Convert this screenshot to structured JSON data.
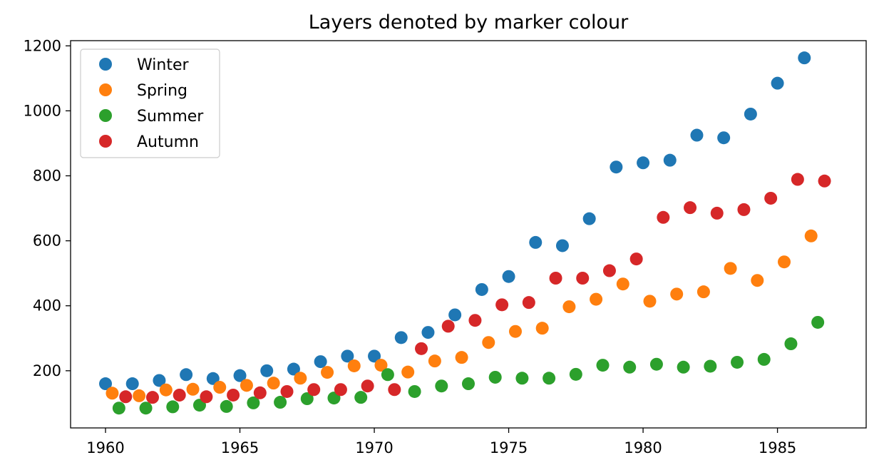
{
  "chart_data": {
    "type": "scatter",
    "title": "Layers denoted by marker colour",
    "xlabel": "",
    "ylabel": "",
    "xlim": [
      1958.7,
      1988.3
    ],
    "ylim": [
      24,
      1216
    ],
    "xticks": [
      1960,
      1965,
      1970,
      1975,
      1980,
      1985
    ],
    "yticks": [
      200,
      400,
      600,
      800,
      1000,
      1200
    ],
    "grid": false,
    "legend": "top-left",
    "series": [
      {
        "name": "Winter",
        "color": "#1f77b4",
        "x": [
          1960,
          1961,
          1962,
          1963,
          1964,
          1965,
          1966,
          1967,
          1968,
          1969,
          1970,
          1971,
          1972,
          1973,
          1974,
          1975,
          1976,
          1977,
          1978,
          1979,
          1980,
          1981,
          1982,
          1983,
          1984,
          1985,
          1986
        ],
        "y": [
          160,
          160,
          170,
          188,
          176,
          185,
          200,
          205,
          228,
          245,
          245,
          302,
          318,
          372,
          450,
          490,
          595,
          585,
          668,
          827,
          840,
          848,
          925,
          917,
          990,
          1085,
          1163
        ]
      },
      {
        "name": "Spring",
        "color": "#ff7f0e",
        "x": [
          1960.25,
          1961.25,
          1962.25,
          1963.25,
          1964.25,
          1965.25,
          1966.25,
          1967.25,
          1968.25,
          1969.25,
          1970.25,
          1971.25,
          1972.25,
          1973.25,
          1974.25,
          1975.25,
          1976.25,
          1977.25,
          1978.25,
          1979.25,
          1980.25,
          1981.25,
          1982.25,
          1983.25,
          1984.25,
          1985.25,
          1986.25
        ],
        "y": [
          131,
          123,
          141,
          143,
          149,
          155,
          162,
          177,
          195,
          215,
          217,
          196,
          230,
          241,
          287,
          321,
          331,
          397,
          420,
          467,
          414,
          436,
          443,
          515,
          478,
          535,
          615
        ]
      },
      {
        "name": "Summer",
        "color": "#2ca02c",
        "x": [
          1960.5,
          1961.5,
          1962.5,
          1963.5,
          1964.5,
          1965.5,
          1966.5,
          1967.5,
          1968.5,
          1969.5,
          1970.5,
          1971.5,
          1972.5,
          1973.5,
          1974.5,
          1975.5,
          1976.5,
          1977.5,
          1978.5,
          1979.5,
          1980.5,
          1981.5,
          1982.5,
          1983.5,
          1984.5,
          1985.5,
          1986.5
        ],
        "y": [
          85,
          85,
          89,
          94,
          90,
          101,
          103,
          114,
          116,
          118,
          188,
          136,
          153,
          160,
          180,
          177,
          177,
          189,
          217,
          211,
          220,
          211,
          214,
          226,
          235,
          283,
          349
        ]
      },
      {
        "name": "Autumn",
        "color": "#d62728",
        "x": [
          1960.75,
          1961.75,
          1962.75,
          1963.75,
          1964.75,
          1965.75,
          1966.75,
          1967.75,
          1968.75,
          1969.75,
          1970.75,
          1971.75,
          1972.75,
          1973.75,
          1974.75,
          1975.75,
          1976.75,
          1977.75,
          1978.75,
          1979.75,
          1980.75,
          1981.75,
          1982.75,
          1983.75,
          1984.75,
          1985.75,
          1986.75
        ],
        "y": [
          120,
          118,
          125,
          120,
          125,
          132,
          136,
          142,
          142,
          153,
          142,
          268,
          337,
          355,
          403,
          410,
          485,
          485,
          508,
          544,
          672,
          702,
          685,
          696,
          731,
          789,
          784
        ]
      }
    ]
  }
}
